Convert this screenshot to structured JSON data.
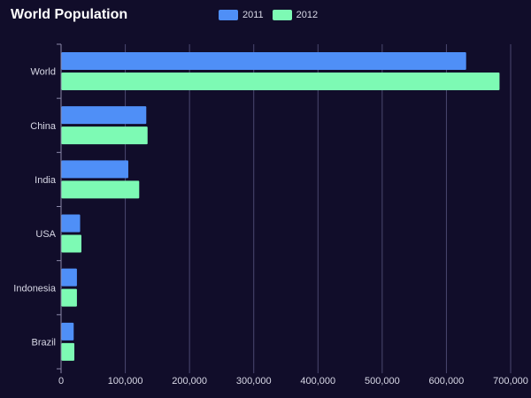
{
  "chart_data": {
    "type": "bar",
    "orientation": "horizontal",
    "title": "World Population",
    "categories": [
      "World",
      "China",
      "India",
      "USA",
      "Indonesia",
      "Brazil"
    ],
    "series": [
      {
        "name": "2011",
        "color": "#4f8ff7",
        "values": [
          630000,
          132000,
          104000,
          29000,
          24000,
          19000
        ]
      },
      {
        "name": "2012",
        "color": "#7dfab4",
        "values": [
          682000,
          134000,
          121000,
          31000,
          24000,
          20000
        ]
      }
    ],
    "x_ticks": [
      "0",
      "100,000",
      "200,000",
      "300,000",
      "400,000",
      "500,000",
      "600,000",
      "700,000"
    ],
    "xlim": [
      0,
      700000
    ],
    "legend_position": "top",
    "grid": "vertical"
  }
}
